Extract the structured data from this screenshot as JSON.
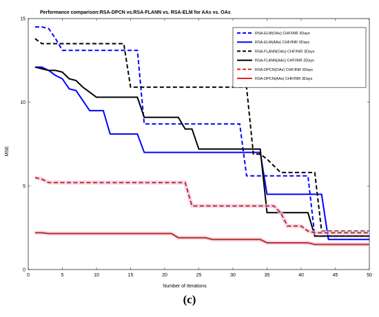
{
  "chart_data": {
    "type": "line",
    "title": "Performance comparison:RSA-DPCN vs.RSA-FLANN vs. RSA-ELM for AAs vs. OAs",
    "xlabel": "Number of Iterations",
    "ylabel": "MSE",
    "xlim": [
      0,
      50
    ],
    "ylim": [
      0,
      15
    ],
    "xticks": [
      0,
      5,
      10,
      15,
      20,
      25,
      30,
      35,
      40,
      45,
      50
    ],
    "yticks": [
      0,
      5,
      10,
      15
    ],
    "grid": false,
    "legend_position": "top-right",
    "series": [
      {
        "name": "RSA-ELM(OAs) CHF/INR 3Days",
        "color": "#0000ff",
        "dash": true,
        "x": [
          1,
          2,
          3,
          4,
          5,
          6,
          7,
          8,
          9,
          10,
          11,
          12,
          13,
          14,
          15,
          16,
          17,
          18,
          19,
          20,
          21,
          22,
          23,
          24,
          25,
          26,
          27,
          28,
          29,
          30,
          31,
          32,
          33,
          34,
          35,
          36,
          37,
          38,
          39,
          40,
          41,
          42,
          43,
          44,
          45,
          46,
          47,
          48,
          49,
          50
        ],
        "y": [
          14.5,
          14.5,
          14.4,
          13.8,
          13.1,
          13.1,
          13.1,
          13.1,
          13.1,
          13.1,
          13.1,
          13.1,
          13.1,
          13.1,
          13.1,
          13.1,
          8.7,
          8.7,
          8.7,
          8.7,
          8.7,
          8.7,
          8.7,
          8.7,
          8.7,
          8.7,
          8.7,
          8.7,
          8.7,
          8.7,
          8.7,
          5.6,
          5.6,
          5.6,
          5.6,
          5.6,
          5.6,
          5.6,
          5.6,
          5.6,
          5.6,
          2.0,
          2.0,
          2.0,
          2.0,
          2.0,
          2.0,
          2.0,
          2.0,
          2.0
        ]
      },
      {
        "name": "RSA-ELM(AAs) CHF/INR 3Days",
        "color": "#0000ff",
        "dash": false,
        "x": [
          1,
          2,
          3,
          4,
          5,
          6,
          7,
          8,
          9,
          10,
          11,
          12,
          13,
          14,
          15,
          16,
          17,
          18,
          19,
          20,
          21,
          22,
          23,
          24,
          25,
          26,
          27,
          28,
          29,
          30,
          31,
          32,
          33,
          34,
          35,
          36,
          37,
          38,
          39,
          40,
          41,
          42,
          43,
          44,
          45,
          46,
          47,
          48,
          49,
          50
        ],
        "y": [
          12.1,
          12.1,
          11.9,
          11.6,
          11.4,
          10.8,
          10.7,
          10.1,
          9.5,
          9.5,
          9.5,
          8.1,
          8.1,
          8.1,
          8.1,
          8.1,
          7.0,
          7.0,
          7.0,
          7.0,
          7.0,
          7.0,
          7.0,
          7.0,
          7.0,
          7.0,
          7.0,
          7.0,
          7.0,
          7.0,
          7.0,
          7.0,
          7.0,
          7.0,
          4.5,
          4.5,
          4.5,
          4.5,
          4.5,
          4.5,
          4.5,
          4.5,
          4.5,
          1.8,
          1.8,
          1.8,
          1.8,
          1.8,
          1.8,
          1.8
        ]
      },
      {
        "name": "RSA-FLANN(OAs) CHF/INR 3Days",
        "color": "#000000",
        "dash": true,
        "x": [
          1,
          2,
          3,
          4,
          5,
          6,
          7,
          8,
          9,
          10,
          11,
          12,
          13,
          14,
          15,
          16,
          17,
          18,
          19,
          20,
          21,
          22,
          23,
          24,
          25,
          26,
          27,
          28,
          29,
          30,
          31,
          32,
          33,
          34,
          35,
          36,
          37,
          38,
          39,
          40,
          41,
          42,
          43,
          44,
          45,
          46,
          47,
          48,
          49,
          50
        ],
        "y": [
          13.8,
          13.5,
          13.5,
          13.5,
          13.5,
          13.5,
          13.5,
          13.5,
          13.5,
          13.5,
          13.5,
          13.5,
          13.5,
          13.5,
          10.9,
          10.9,
          10.9,
          10.9,
          10.9,
          10.9,
          10.9,
          10.9,
          10.9,
          10.9,
          10.9,
          10.9,
          10.9,
          10.9,
          10.9,
          10.9,
          10.9,
          10.9,
          6.9,
          6.9,
          6.6,
          6.2,
          5.8,
          5.8,
          5.8,
          5.8,
          5.8,
          5.8,
          2.3,
          2.3,
          2.3,
          2.3,
          2.3,
          2.3,
          2.3,
          2.3
        ]
      },
      {
        "name": "RSA-FLANN(AAs) CHF/INR 3Days",
        "color": "#000000",
        "dash": false,
        "x": [
          1,
          2,
          3,
          4,
          5,
          6,
          7,
          8,
          9,
          10,
          11,
          12,
          13,
          14,
          15,
          16,
          17,
          18,
          19,
          20,
          21,
          22,
          23,
          24,
          25,
          26,
          27,
          28,
          29,
          30,
          31,
          32,
          33,
          34,
          35,
          36,
          37,
          38,
          39,
          40,
          41,
          42,
          43,
          44,
          45,
          46,
          47,
          48,
          49,
          50
        ],
        "y": [
          12.1,
          12.0,
          11.9,
          11.9,
          11.8,
          11.4,
          11.3,
          10.9,
          10.6,
          10.3,
          10.3,
          10.3,
          10.3,
          10.3,
          10.3,
          10.3,
          9.1,
          9.1,
          9.1,
          9.1,
          9.1,
          9.1,
          8.4,
          8.4,
          7.2,
          7.2,
          7.2,
          7.2,
          7.2,
          7.2,
          7.2,
          7.2,
          7.2,
          7.2,
          3.4,
          3.4,
          3.4,
          3.4,
          3.4,
          3.4,
          3.4,
          2.0,
          2.0,
          2.0,
          2.0,
          2.0,
          2.0,
          2.0,
          2.0,
          2.0
        ]
      },
      {
        "name": "RSA-DPCN(OAs) CHF/INR 3Days",
        "color": "#e8201a",
        "dash": true,
        "x": [
          1,
          2,
          3,
          4,
          5,
          6,
          7,
          8,
          9,
          10,
          11,
          12,
          13,
          14,
          15,
          16,
          17,
          18,
          19,
          20,
          21,
          22,
          23,
          24,
          25,
          26,
          27,
          28,
          29,
          30,
          31,
          32,
          33,
          34,
          35,
          36,
          37,
          38,
          39,
          40,
          41,
          42,
          43,
          44,
          45,
          46,
          47,
          48,
          49,
          50
        ],
        "y": [
          5.5,
          5.4,
          5.2,
          5.2,
          5.2,
          5.2,
          5.2,
          5.2,
          5.2,
          5.2,
          5.2,
          5.2,
          5.2,
          5.2,
          5.2,
          5.2,
          5.2,
          5.2,
          5.2,
          5.2,
          5.2,
          5.2,
          5.2,
          3.8,
          3.8,
          3.8,
          3.8,
          3.8,
          3.8,
          3.8,
          3.8,
          3.8,
          3.8,
          3.8,
          3.8,
          3.8,
          3.4,
          2.6,
          2.6,
          2.6,
          2.3,
          2.2,
          2.2,
          2.2,
          2.2,
          2.2,
          2.2,
          2.2,
          2.2,
          2.2
        ]
      },
      {
        "name": "RSA-DPCN(AAs) CHF/INR 3Days",
        "color": "#e8201a",
        "dash": false,
        "x": [
          1,
          2,
          3,
          4,
          5,
          6,
          7,
          8,
          9,
          10,
          11,
          12,
          13,
          14,
          15,
          16,
          17,
          18,
          19,
          20,
          21,
          22,
          23,
          24,
          25,
          26,
          27,
          28,
          29,
          30,
          31,
          32,
          33,
          34,
          35,
          36,
          37,
          38,
          39,
          40,
          41,
          42,
          43,
          44,
          45,
          46,
          47,
          48,
          49,
          50
        ],
        "y": [
          2.2,
          2.2,
          2.15,
          2.15,
          2.15,
          2.15,
          2.15,
          2.15,
          2.15,
          2.15,
          2.15,
          2.15,
          2.15,
          2.15,
          2.15,
          2.15,
          2.15,
          2.15,
          2.15,
          2.15,
          2.15,
          1.9,
          1.9,
          1.9,
          1.9,
          1.9,
          1.8,
          1.8,
          1.8,
          1.8,
          1.8,
          1.8,
          1.8,
          1.8,
          1.6,
          1.6,
          1.6,
          1.6,
          1.6,
          1.6,
          1.6,
          1.5,
          1.5,
          1.5,
          1.5,
          1.5,
          1.5,
          1.5,
          1.5,
          1.5
        ]
      }
    ],
    "overlay_color": "#8b4513"
  },
  "caption": "(c)"
}
